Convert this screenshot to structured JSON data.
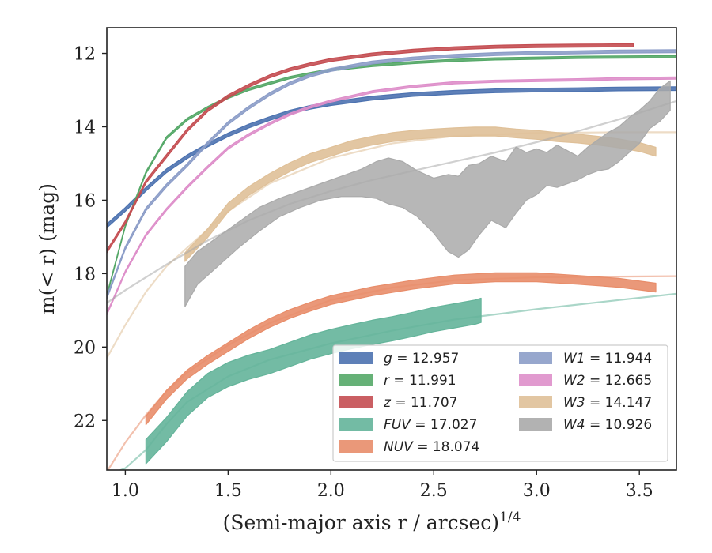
{
  "chart_data": {
    "type": "line",
    "xlabel": "(Semi-major axis r / arcsec)",
    "xlabel_superscript": "1/4",
    "ylabel": "m(< r) (mag)",
    "xlim": [
      0.91,
      3.68
    ],
    "ylim": [
      23.35,
      11.3
    ],
    "y_inverted": true,
    "xticks": [
      "1.0",
      "1.5",
      "2.0",
      "2.5",
      "3.0",
      "3.5"
    ],
    "yticks": [
      "12",
      "14",
      "16",
      "18",
      "20",
      "22"
    ],
    "legend_position": "lower-right",
    "series": [
      {
        "name": "g",
        "label_value": "12.957",
        "color": "#4c72b0",
        "kind": "band",
        "x": [
          0.91,
          1.0,
          1.1,
          1.2,
          1.3,
          1.4,
          1.5,
          1.6,
          1.7,
          1.8,
          1.9,
          2.0,
          2.2,
          2.4,
          2.6,
          2.8,
          3.0,
          3.2,
          3.4,
          3.68
        ],
        "y": [
          16.7,
          16.25,
          15.7,
          15.2,
          14.82,
          14.5,
          14.22,
          13.98,
          13.78,
          13.6,
          13.47,
          13.37,
          13.22,
          13.12,
          13.06,
          13.02,
          13.0,
          12.99,
          12.97,
          12.96
        ],
        "half_width": 0.05,
        "asymptote": 12.957
      },
      {
        "name": "r",
        "label_value": "11.991",
        "color": "#55a868",
        "kind": "band",
        "x": [
          0.91,
          1.0,
          1.1,
          1.2,
          1.3,
          1.4,
          1.5,
          1.6,
          1.7,
          1.8,
          1.9,
          2.0,
          2.2,
          2.4,
          2.6,
          2.8,
          3.0,
          3.2,
          3.4,
          3.68
        ],
        "y": [
          18.6,
          16.7,
          15.25,
          14.3,
          13.8,
          13.48,
          13.2,
          12.98,
          12.82,
          12.66,
          12.55,
          12.45,
          12.33,
          12.25,
          12.19,
          12.15,
          12.13,
          12.11,
          12.1,
          12.09
        ],
        "half_width": 0.03,
        "asymptote": 11.991
      },
      {
        "name": "z",
        "label_value": "11.707",
        "color": "#c44e52",
        "kind": "band",
        "x": [
          0.91,
          1.0,
          1.1,
          1.2,
          1.3,
          1.4,
          1.5,
          1.6,
          1.7,
          1.8,
          1.9,
          2.0,
          2.2,
          2.4,
          2.6,
          2.8,
          3.0,
          3.2,
          3.47
        ],
        "y": [
          17.4,
          16.6,
          15.5,
          14.8,
          14.1,
          13.55,
          13.17,
          12.88,
          12.63,
          12.44,
          12.3,
          12.18,
          12.03,
          11.93,
          11.86,
          11.82,
          11.8,
          11.79,
          11.78
        ],
        "half_width": 0.04,
        "asymptote": 11.707
      },
      {
        "name": "FUV",
        "label_value": "17.027",
        "color": "#64b49a",
        "kind": "band",
        "x": [
          1.1,
          1.2,
          1.3,
          1.4,
          1.5,
          1.6,
          1.7,
          1.8,
          1.9,
          2.0,
          2.1,
          2.2,
          2.3,
          2.4,
          2.5,
          2.6,
          2.7,
          2.73
        ],
        "y": [
          22.85,
          22.25,
          21.55,
          21.05,
          20.75,
          20.55,
          20.4,
          20.2,
          20.0,
          19.85,
          19.72,
          19.6,
          19.5,
          19.38,
          19.25,
          19.15,
          19.05,
          19.0
        ],
        "half_width": 0.33,
        "asymptote": 17.027,
        "extrapolation": {
          "x": [
            0.91,
            1.0,
            1.1,
            1.2,
            1.3,
            1.5,
            1.7,
            2.0,
            2.3,
            2.6,
            3.0,
            3.4,
            3.68
          ],
          "y": [
            23.5,
            23.3,
            22.8,
            22.1,
            21.5,
            20.8,
            20.35,
            19.9,
            19.55,
            19.25,
            18.97,
            18.72,
            18.55
          ]
        }
      },
      {
        "name": "NUV",
        "label_value": "18.074",
        "color": "#e88d6a",
        "kind": "band",
        "x": [
          1.1,
          1.2,
          1.3,
          1.4,
          1.5,
          1.6,
          1.7,
          1.8,
          1.9,
          2.0,
          2.2,
          2.4,
          2.6,
          2.8,
          3.0,
          3.2,
          3.4,
          3.58
        ],
        "y": [
          22.0,
          21.3,
          20.75,
          20.35,
          20.0,
          19.65,
          19.35,
          19.1,
          18.9,
          18.72,
          18.48,
          18.3,
          18.16,
          18.1,
          18.1,
          18.17,
          18.25,
          18.38
        ],
        "half_width": 0.12,
        "asymptote": 18.074,
        "extrapolation": {
          "x": [
            0.91,
            1.0,
            1.1,
            1.2,
            1.3,
            1.5,
            1.7,
            2.0,
            2.3,
            2.6,
            3.0,
            3.4,
            3.68
          ],
          "y": [
            23.4,
            22.6,
            21.85,
            21.2,
            20.7,
            19.95,
            19.35,
            18.72,
            18.38,
            18.18,
            18.1,
            18.08,
            18.07
          ]
        }
      },
      {
        "name": "W1",
        "label_value": "11.944",
        "color": "#8c9dc8",
        "kind": "band",
        "x": [
          0.91,
          1.0,
          1.1,
          1.2,
          1.3,
          1.4,
          1.5,
          1.6,
          1.7,
          1.8,
          1.9,
          2.0,
          2.2,
          2.4,
          2.6,
          2.8,
          3.0,
          3.2,
          3.4,
          3.68
        ],
        "y": [
          18.65,
          17.3,
          16.25,
          15.6,
          15.05,
          14.45,
          13.9,
          13.48,
          13.12,
          12.82,
          12.6,
          12.45,
          12.25,
          12.14,
          12.07,
          12.02,
          11.99,
          11.97,
          11.95,
          11.94
        ],
        "half_width": 0.04,
        "asymptote": 11.944
      },
      {
        "name": "W2",
        "label_value": "12.665",
        "color": "#de8fca",
        "kind": "band",
        "x": [
          0.91,
          1.0,
          1.1,
          1.2,
          1.3,
          1.4,
          1.5,
          1.6,
          1.7,
          1.8,
          1.9,
          2.0,
          2.2,
          2.4,
          2.6,
          2.8,
          3.0,
          3.2,
          3.4,
          3.68
        ],
        "y": [
          19.1,
          17.95,
          16.95,
          16.25,
          15.65,
          15.1,
          14.58,
          14.22,
          13.92,
          13.66,
          13.46,
          13.3,
          13.05,
          12.9,
          12.8,
          12.76,
          12.74,
          12.72,
          12.69,
          12.67
        ],
        "half_width": 0.03,
        "asymptote": 12.665
      },
      {
        "name": "W3",
        "label_value": "14.147",
        "color": "#dfc098",
        "kind": "band",
        "x": [
          1.29,
          1.4,
          1.5,
          1.6,
          1.7,
          1.8,
          1.9,
          2.0,
          2.1,
          2.2,
          2.3,
          2.4,
          2.5,
          2.6,
          2.7,
          2.8,
          2.9,
          3.0,
          3.1,
          3.2,
          3.3,
          3.4,
          3.5,
          3.58
        ],
        "y": [
          17.55,
          16.9,
          16.2,
          15.75,
          15.4,
          15.1,
          14.85,
          14.68,
          14.5,
          14.38,
          14.28,
          14.22,
          14.18,
          14.15,
          14.13,
          14.13,
          14.18,
          14.22,
          14.28,
          14.32,
          14.38,
          14.45,
          14.55,
          14.68
        ],
        "half_width": 0.12,
        "asymptote": 14.147,
        "extrapolation": {
          "x": [
            0.91,
            1.0,
            1.1,
            1.2,
            1.3,
            1.5,
            1.7,
            2.0,
            2.3,
            2.6,
            3.0,
            3.4,
            3.68
          ],
          "y": [
            20.3,
            19.4,
            18.5,
            17.8,
            17.3,
            16.3,
            15.55,
            14.85,
            14.45,
            14.25,
            14.17,
            14.15,
            14.15
          ]
        }
      },
      {
        "name": "W4",
        "label_value": "10.926",
        "color": "#aaaaaa",
        "kind": "band",
        "x": [
          1.29,
          1.35,
          1.45,
          1.55,
          1.65,
          1.75,
          1.85,
          1.95,
          2.05,
          2.15,
          2.22,
          2.28,
          2.35,
          2.42,
          2.5,
          2.57,
          2.62,
          2.67,
          2.72,
          2.78,
          2.85,
          2.9,
          2.95,
          3.0,
          3.05,
          3.1,
          3.15,
          3.2,
          3.25,
          3.3,
          3.35,
          3.4,
          3.45,
          3.5,
          3.55,
          3.6,
          3.65
        ],
        "y_upper": [
          17.8,
          17.4,
          17.0,
          16.6,
          16.2,
          15.95,
          15.75,
          15.55,
          15.35,
          15.15,
          14.95,
          14.85,
          14.95,
          15.2,
          15.4,
          15.3,
          15.35,
          15.05,
          15.0,
          14.8,
          14.95,
          14.55,
          14.7,
          14.6,
          14.7,
          14.5,
          14.65,
          14.8,
          14.55,
          14.35,
          14.15,
          14.0,
          13.75,
          13.55,
          13.3,
          12.95,
          12.75
        ],
        "y_lower": [
          18.9,
          18.3,
          17.8,
          17.3,
          16.85,
          16.45,
          16.2,
          16.0,
          15.9,
          15.9,
          15.95,
          16.1,
          16.2,
          16.45,
          16.9,
          17.4,
          17.55,
          17.35,
          16.95,
          16.55,
          16.75,
          16.35,
          16.0,
          15.85,
          15.6,
          15.65,
          15.55,
          15.45,
          15.3,
          15.2,
          15.15,
          14.95,
          14.7,
          14.45,
          14.05,
          13.85,
          13.55
        ],
        "asymptote": 10.926,
        "extrapolation": {
          "x": [
            0.91,
            1.0,
            1.2,
            1.4,
            1.6,
            1.8,
            2.0,
            2.2,
            2.4,
            2.6,
            2.8,
            3.0,
            3.2,
            3.4,
            3.68
          ],
          "y": [
            18.8,
            18.45,
            17.75,
            17.1,
            16.55,
            16.1,
            15.75,
            15.45,
            15.2,
            14.95,
            14.7,
            14.42,
            14.12,
            13.8,
            13.3
          ]
        }
      }
    ]
  }
}
